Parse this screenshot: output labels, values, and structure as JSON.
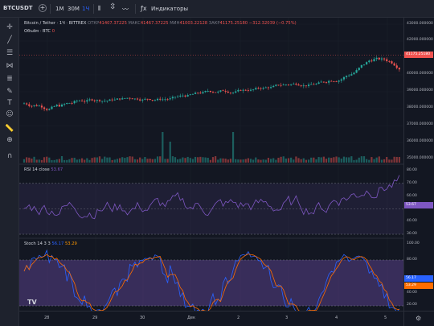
{
  "toolbar": {
    "symbol": "BTCUSDT",
    "add": "+",
    "timeframes": [
      "1M",
      "30M",
      "1Ч"
    ],
    "indicators_label": "Индикаторы"
  },
  "legend": {
    "title": "Bitcoin / Tether · 1Ч · BITTREX",
    "open_label": "ОТКР",
    "open": "41407.37225",
    "high_label": "МАКС",
    "high": "41467.37225",
    "low_label": "МИН",
    "low": "41003.22128",
    "close_label": "ЗАКР",
    "close": "41175.25180",
    "change": "−312.32039 (−0.75%)",
    "volume": "Объём · BTC",
    "volume_value": "0"
  },
  "rsi_legend": {
    "label": "RSI 14 close",
    "value": "53.67"
  },
  "stoch_legend": {
    "label": "Stoch 14 3 3",
    "k": "56.17",
    "d": "53.29"
  },
  "price_axis": [
    "43000.000000",
    "42000.000000",
    "41000.000000",
    "40000.000000",
    "39000.000000",
    "38000.000000",
    "37000.000000",
    "36000.000000",
    "35000.000000"
  ],
  "price_badge": "41175.25180",
  "rsi_axis": [
    "80.00",
    "70.00",
    "60.00",
    "50.00",
    "40.00",
    "30.00"
  ],
  "rsi_badge": "53.67",
  "stoch_axis": [
    "100.00",
    "80.00",
    "60.00",
    "40.00",
    "20.00"
  ],
  "stoch_badges": [
    "56.17",
    "53.29"
  ],
  "time_axis": [
    "28",
    "29",
    "30",
    "Дек",
    "2",
    "3",
    "4",
    "5"
  ],
  "colors": {
    "up": "#26a69a",
    "down": "#ef5350",
    "rsi": "#7e57c2",
    "stoch_k": "#2962ff",
    "stoch_d": "#ff6d00"
  }
}
